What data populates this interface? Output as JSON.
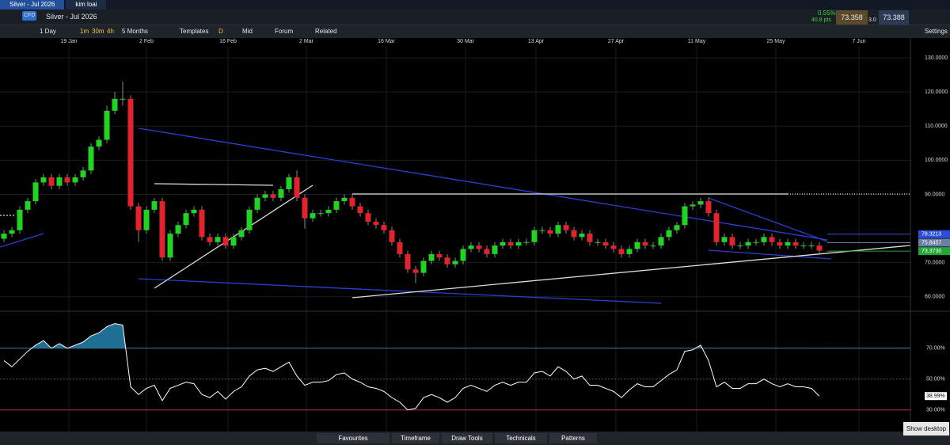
{
  "tabs": [
    "Silver - Jul 2026",
    "kim loai"
  ],
  "instrument": {
    "badge": "CFD",
    "name": "Silver - Jul 2026"
  },
  "quote": {
    "change": "0.55%",
    "points": "40.8 pts",
    "sell": "73.358",
    "spread": "3.0",
    "buy": "73.388"
  },
  "toolbar": {
    "interval": "1 Day",
    "timeframes": [
      "1m",
      "30m",
      "4h"
    ],
    "range": "5 Months",
    "templates": "Templates",
    "d": "D",
    "mid": "Mid",
    "forum": "Forum",
    "related": "Related",
    "settings": "Settings"
  },
  "chart_data": [
    {
      "type": "candlestick",
      "up_color": "#22d422",
      "down_color": "#e3232b",
      "xlim": [
        -0.5,
        114.5
      ],
      "ylim": [
        56,
        133.5
      ],
      "xticks": [
        {
          "value": 8.2,
          "label": "19 Jan"
        },
        {
          "value": 18,
          "label": "2 Feb"
        },
        {
          "value": 28.3,
          "label": "16 Feb"
        },
        {
          "value": 38.2,
          "label": "2 Mar"
        },
        {
          "value": 48.3,
          "label": "16 Mar"
        },
        {
          "value": 58.3,
          "label": "30 Mar"
        },
        {
          "value": 67.2,
          "label": "13 Apr"
        },
        {
          "value": 77.3,
          "label": "27 Apr"
        },
        {
          "value": 87.5,
          "label": "11 May"
        },
        {
          "value": 97.5,
          "label": "25 May"
        },
        {
          "value": 108,
          "label": "7 Jun"
        }
      ],
      "yticks": [
        {
          "value": 130,
          "label": "130.0000"
        },
        {
          "value": 120,
          "label": "120.0000"
        },
        {
          "value": 110,
          "label": "110.0000"
        },
        {
          "value": 100,
          "label": "100.0000"
        },
        {
          "value": 90,
          "label": "90.0000"
        },
        {
          "value": 70,
          "label": "70.0000"
        },
        {
          "value": 60,
          "label": "60.0000"
        }
      ],
      "price_markers": [
        {
          "value": 78.3213,
          "label": "78.3213",
          "color": "#2b4fd8"
        },
        {
          "value": 75.8457,
          "label": "75.8457",
          "color": "#6d7fa8"
        },
        {
          "value": 73.373,
          "label": "73.3730",
          "color": "#22a83a"
        }
      ],
      "open": [
        77,
        78.5,
        79.5,
        85.5,
        88,
        93.5,
        95,
        92.5,
        95,
        93.5,
        95,
        97,
        104,
        106,
        114.5,
        118,
        118,
        86.5,
        79.5,
        85.5,
        88,
        71.5,
        78.5,
        81,
        84.5,
        85.5,
        77.5,
        76,
        77.5,
        75,
        77.5,
        79.5,
        85.5,
        89,
        90,
        89,
        91.5,
        95,
        89,
        83,
        84.5,
        84.5,
        85.5,
        88,
        89,
        86.5,
        84.5,
        82,
        81,
        79.5,
        76,
        72.5,
        68,
        67,
        70.5,
        72.5,
        71.5,
        69.5,
        70.5,
        74,
        75,
        74,
        72.5,
        75,
        76,
        75,
        76,
        76,
        79.5,
        79.5,
        78.5,
        81,
        79.5,
        77.5,
        78.5,
        76,
        76,
        75,
        74,
        72.5,
        74,
        76,
        75,
        75,
        77.5,
        79.5,
        81,
        86.5,
        87,
        88,
        84.5,
        76,
        77.5,
        75,
        75,
        76,
        76,
        77.5,
        76,
        75,
        76,
        75,
        75,
        75
      ],
      "high": [
        79.5,
        80.5,
        86.5,
        89,
        94.5,
        96,
        96,
        96,
        96,
        96,
        98,
        105,
        107,
        116,
        120,
        123,
        119,
        87.5,
        86.5,
        89,
        89,
        79.5,
        82,
        85.5,
        86.5,
        86.5,
        78.5,
        78.5,
        78.5,
        78.5,
        80.5,
        86.5,
        90,
        91,
        91,
        92.5,
        96,
        97,
        90,
        85.5,
        85.5,
        86.5,
        89,
        90,
        90,
        87.5,
        85.5,
        83,
        82,
        80.5,
        77,
        73.5,
        69,
        71.5,
        73.5,
        73.5,
        72.5,
        71.5,
        75,
        76,
        76,
        75,
        76,
        77,
        77,
        77,
        77,
        80.5,
        80.5,
        80.5,
        82,
        82,
        80.5,
        79.5,
        79.5,
        77,
        77,
        76,
        75,
        75,
        77,
        77,
        76,
        78.5,
        80.5,
        82,
        87.5,
        88,
        89,
        89,
        85.5,
        78.5,
        78.5,
        76,
        77,
        77,
        78.5,
        78.5,
        77,
        77,
        77,
        76,
        76,
        76
      ],
      "low": [
        76,
        77.5,
        78.5,
        84.5,
        87,
        92.5,
        91.5,
        91.5,
        92.5,
        92.5,
        94,
        96,
        103,
        105,
        113.5,
        116,
        85.5,
        76,
        78.5,
        84.5,
        70.5,
        70.5,
        77.5,
        80,
        83.5,
        76.5,
        75,
        75,
        74,
        74,
        76.5,
        78.5,
        84.5,
        88,
        88,
        88,
        90.5,
        88,
        80,
        82,
        83.5,
        83.5,
        84.5,
        87,
        85.5,
        83.5,
        81,
        80,
        78.5,
        75,
        71.5,
        67,
        64,
        66,
        69.5,
        70.5,
        68.5,
        68.5,
        69.5,
        73,
        73,
        71.5,
        71.5,
        74,
        74,
        74,
        75,
        75,
        78.5,
        77.5,
        77.5,
        78.5,
        76.5,
        76.5,
        75,
        75,
        74,
        73,
        71.5,
        71.5,
        73,
        74,
        74,
        74,
        76.5,
        78.5,
        80,
        85.5,
        86,
        83.5,
        75,
        75,
        74,
        74,
        74,
        75,
        75,
        75,
        74,
        74,
        74,
        74,
        74,
        72.5
      ],
      "close": [
        78.5,
        79.5,
        85.5,
        88,
        93.5,
        95,
        92.5,
        95,
        93.5,
        95,
        97,
        104,
        106,
        114.5,
        118,
        118,
        86.5,
        79.5,
        85.5,
        88,
        71.5,
        78.5,
        81,
        84.5,
        85.5,
        77.5,
        76,
        77.5,
        75,
        77.5,
        79.5,
        85.5,
        89,
        90,
        89,
        91.5,
        95,
        89,
        83,
        84.5,
        84.5,
        85.5,
        88,
        89,
        86.5,
        84.5,
        82,
        81,
        79.5,
        76,
        72.5,
        68,
        67,
        70.5,
        72.5,
        71.5,
        69.5,
        70.5,
        74,
        75,
        74,
        72.5,
        75,
        76,
        75,
        76,
        76,
        79.5,
        79.5,
        78.5,
        81,
        79.5,
        77.5,
        78.5,
        76,
        76,
        75,
        74,
        72.5,
        74,
        76,
        75,
        75,
        77.5,
        79.5,
        81,
        86.5,
        87,
        88,
        84.5,
        76,
        77.5,
        75,
        75,
        76,
        76,
        77.5,
        76,
        75,
        76,
        75,
        75,
        75,
        73.5
      ]
    },
    {
      "type": "line",
      "color": "#ffffff",
      "fill_color": "#1f6f94",
      "xlim": [
        -0.5,
        114.5
      ],
      "ylim": [
        16,
        93
      ],
      "yticks": [
        {
          "value": 70,
          "label": "70.00%"
        },
        {
          "value": 50,
          "label": "50.00%"
        },
        {
          "value": 30,
          "label": "30.00%"
        }
      ],
      "values": [
        62,
        58,
        63,
        68,
        72,
        75,
        70,
        73,
        70,
        72,
        74,
        78,
        80,
        84,
        86,
        85,
        45,
        40,
        44,
        46,
        36,
        44,
        46,
        48,
        47,
        40,
        38,
        42,
        37,
        42,
        45,
        52,
        56,
        57,
        55,
        58,
        61,
        52,
        46,
        48,
        48,
        49,
        53,
        54,
        50,
        48,
        45,
        44,
        42,
        38,
        35,
        30,
        31,
        38,
        40,
        38,
        35,
        38,
        44,
        46,
        44,
        42,
        46,
        48,
        46,
        48,
        48,
        54,
        55,
        52,
        58,
        55,
        50,
        52,
        46,
        46,
        44,
        42,
        38,
        43,
        47,
        45,
        45,
        49,
        53,
        56,
        68,
        69,
        72,
        62,
        45,
        48,
        44,
        44,
        47,
        47,
        50,
        47,
        45,
        47,
        45,
        45,
        44,
        38.99
      ],
      "last_label": "38.99%"
    }
  ],
  "bottom_bar": {
    "tabs": [
      "Favourites",
      "Timeframe",
      "Draw Tools",
      "Technicals",
      "Patterns"
    ],
    "tooltip": "Show desktop"
  }
}
